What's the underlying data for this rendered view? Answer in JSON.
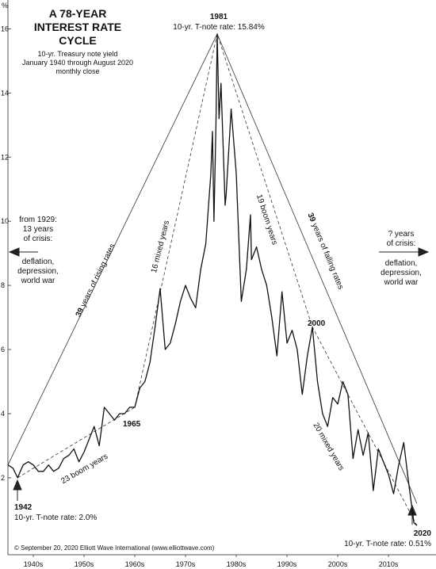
{
  "chart_data": {
    "type": "line",
    "title": [
      "A 78-YEAR",
      "INTEREST RATE",
      "CYCLE"
    ],
    "subtitle": [
      "10-yr. Treasury note yield",
      "January 1940 through August 2020",
      "monthly close"
    ],
    "y_unit": "%",
    "x": [
      1940,
      1941,
      1941.9,
      1943,
      1944,
      1945,
      1946,
      1947,
      1948,
      1949,
      1950,
      1951,
      1952,
      1953,
      1954,
      1955,
      1956,
      1957,
      1958,
      1959,
      1960,
      1961,
      1962,
      1963,
      1964,
      1965,
      1966,
      1967,
      1968,
      1969,
      1970,
      1971,
      1972,
      1973,
      1974,
      1975,
      1976,
      1977,
      1978,
      1979,
      1980,
      1980.3,
      1980.6,
      1981,
      1981.25,
      1981.6,
      1982,
      1982.8,
      1983,
      1984,
      1985,
      1986,
      1987,
      1987.8,
      1988,
      1989,
      1990,
      1991,
      1992,
      1993,
      1994,
      1995,
      1996,
      1997,
      1998,
      1999,
      2000,
      2001,
      2002,
      2003,
      2004,
      2005,
      2006,
      2007,
      2008,
      2009,
      2010,
      2011,
      2012,
      2013,
      2014,
      2015,
      2016,
      2017,
      2018,
      2019,
      2020,
      2020.6
    ],
    "values": [
      2.4,
      2.3,
      2.0,
      2.4,
      2.5,
      2.4,
      2.2,
      2.2,
      2.4,
      2.2,
      2.3,
      2.6,
      2.7,
      2.9,
      2.5,
      2.8,
      3.2,
      3.6,
      3.0,
      4.2,
      4.0,
      3.8,
      4.0,
      4.0,
      4.2,
      4.2,
      4.8,
      5.0,
      5.6,
      6.7,
      7.9,
      6.0,
      6.2,
      6.8,
      7.5,
      8.0,
      7.6,
      7.3,
      8.5,
      9.3,
      11.5,
      12.8,
      10.0,
      13.0,
      15.84,
      13.2,
      14.3,
      10.5,
      10.8,
      13.5,
      11.5,
      7.5,
      8.5,
      10.2,
      8.8,
      9.2,
      8.5,
      8.0,
      7.0,
      5.8,
      7.8,
      6.2,
      6.6,
      6.0,
      4.6,
      5.8,
      6.7,
      5.0,
      4.0,
      3.6,
      4.5,
      4.3,
      5.0,
      4.6,
      2.6,
      3.5,
      2.7,
      3.4,
      1.6,
      2.9,
      2.5,
      2.1,
      1.5,
      2.4,
      3.1,
      1.8,
      0.6,
      0.51
    ],
    "color": "#111111",
    "xlim": [
      1940,
      2022.8
    ],
    "ylim": [
      -0.4,
      16.9
    ],
    "yticks": [
      2,
      4,
      6,
      8,
      10,
      12,
      14,
      16
    ],
    "xticks": [
      {
        "value": 1945,
        "label": "1940s"
      },
      {
        "value": 1955,
        "label": "1950s"
      },
      {
        "value": 1965,
        "label": "1960s"
      },
      {
        "value": 1975,
        "label": "1970s"
      },
      {
        "value": 1985,
        "label": "1980s"
      },
      {
        "value": 1995,
        "label": "1990s"
      },
      {
        "value": 2005,
        "label": "2000s"
      },
      {
        "value": 2015,
        "label": "2010s"
      }
    ],
    "trendlines": [
      {
        "x": [
          1940,
          1981.25,
          2020.6
        ],
        "y": [
          2.4,
          15.84,
          1.2
        ],
        "dashed": false
      },
      {
        "x": [
          1941.9,
          1965,
          1981.25,
          2000,
          2020.6
        ],
        "y": [
          2.0,
          4.2,
          15.84,
          6.7,
          0.51
        ],
        "dashed": true
      }
    ],
    "annotations": {
      "peak_year": "1981",
      "peak_rate": "10-yr. T-note rate: 15.84%",
      "start_year": "1942",
      "start_rate": "10-yr. T-note rate: 2.0%",
      "end_year": "2020",
      "end_rate": "10-yr. T-note rate: 0.51%",
      "y1965": "1965",
      "y2000": "2000",
      "rising_num": "39",
      "rising": "years of rising rates",
      "falling_num": "39",
      "falling": "years of falling rates",
      "mixed16": "16 mixed years",
      "boom19": "19 boom years",
      "boom23": "23 boom years",
      "mixed20": "20 mixed years",
      "left_note": [
        "from 1929:",
        "13 years",
        "of crisis:",
        "deflation,",
        "depression,",
        "world war"
      ],
      "right_note": [
        "? years",
        "of crisis:",
        "deflation,",
        "depression,",
        "world war"
      ],
      "copyright": "© September 20, 2020 Elliott Wave International (www.elliottwave.com)"
    }
  }
}
